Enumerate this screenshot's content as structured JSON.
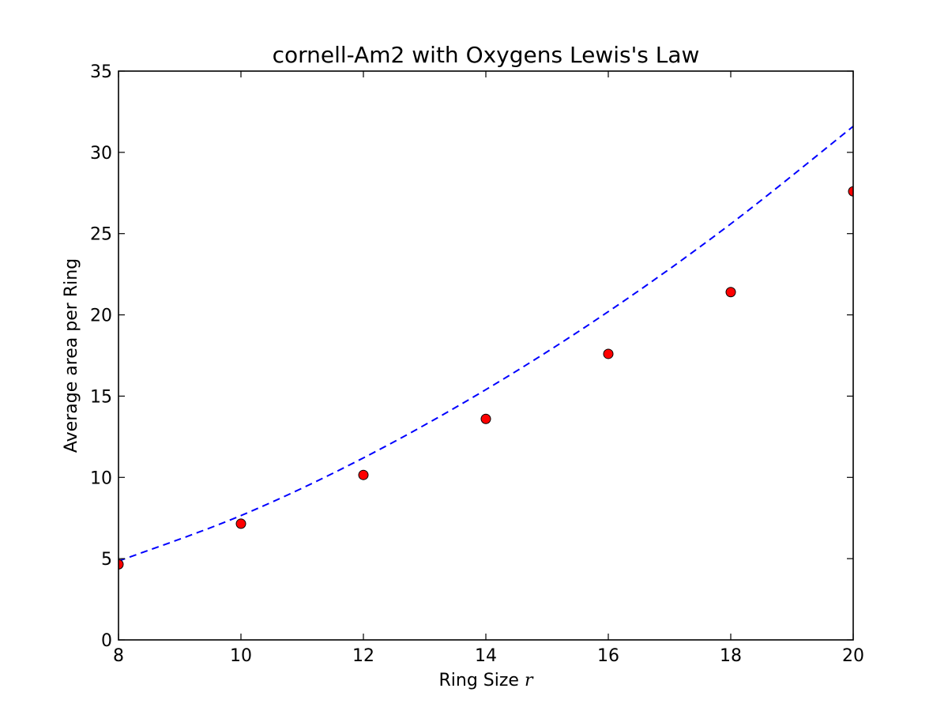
{
  "chart_data": {
    "type": "scatter",
    "title": "cornell-Am2 with Oxygens Lewis's Law",
    "xlabel": "Ring Size",
    "xlabel_var": "r",
    "ylabel": "Average area per Ring",
    "xlim": [
      8,
      20
    ],
    "ylim": [
      0,
      35
    ],
    "xticks": [
      8,
      10,
      12,
      14,
      16,
      18,
      20
    ],
    "yticks": [
      0,
      5,
      10,
      15,
      20,
      25,
      30,
      35
    ],
    "grid": false,
    "series": [
      {
        "kind": "points",
        "marker": "circle",
        "color": "#ff0000",
        "edge_color": "#000000",
        "x": [
          8,
          10,
          12,
          14,
          16,
          18,
          20
        ],
        "y": [
          4.65,
          7.15,
          10.15,
          13.6,
          17.6,
          21.4,
          27.6
        ]
      },
      {
        "kind": "line",
        "style": "dashed",
        "color": "#0000ff",
        "x": [
          8,
          10,
          12,
          14,
          16,
          18,
          20
        ],
        "y": [
          4.85,
          7.65,
          11.2,
          15.4,
          20.2,
          25.6,
          31.6
        ]
      }
    ]
  }
}
